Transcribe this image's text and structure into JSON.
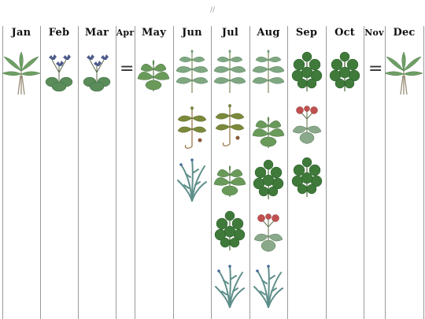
{
  "top_mark": "//",
  "months": [
    "Jan",
    "Feb",
    "Mar",
    "Apr",
    "May",
    "Jun",
    "Jul",
    "Aug",
    "Sep",
    "Oct",
    "Nov",
    "Dec"
  ],
  "gap_mark": "="
}
